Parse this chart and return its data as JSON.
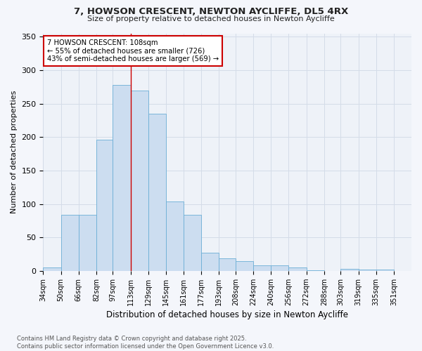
{
  "title_line1": "7, HOWSON CRESCENT, NEWTON AYCLIFFE, DL5 4RX",
  "title_line2": "Size of property relative to detached houses in Newton Aycliffe",
  "xlabel": "Distribution of detached houses by size in Newton Aycliffe",
  "ylabel": "Number of detached properties",
  "bar_color": "#ccddf0",
  "bar_edge_color": "#6baed6",
  "grid_color": "#d4dce8",
  "background_color": "#eef2f8",
  "fig_background": "#f4f6fb",
  "annotation_text": "7 HOWSON CRESCENT: 108sqm\n← 55% of detached houses are smaller (726)\n43% of semi-detached houses are larger (569) →",
  "property_line_x": 113,
  "categories": [
    "34sqm",
    "50sqm",
    "66sqm",
    "82sqm",
    "97sqm",
    "113sqm",
    "129sqm",
    "145sqm",
    "161sqm",
    "177sqm",
    "193sqm",
    "208sqm",
    "224sqm",
    "240sqm",
    "256sqm",
    "272sqm",
    "288sqm",
    "303sqm",
    "319sqm",
    "335sqm",
    "351sqm"
  ],
  "bin_edges": [
    34,
    50,
    66,
    82,
    97,
    113,
    129,
    145,
    161,
    177,
    193,
    208,
    224,
    240,
    256,
    272,
    288,
    303,
    319,
    335,
    351,
    367
  ],
  "values": [
    5,
    84,
    84,
    196,
    278,
    270,
    235,
    104,
    84,
    27,
    19,
    14,
    8,
    8,
    5,
    1,
    0,
    3,
    2,
    2,
    0
  ],
  "ylim": [
    0,
    355
  ],
  "yticks": [
    0,
    50,
    100,
    150,
    200,
    250,
    300,
    350
  ],
  "footnote": "Contains HM Land Registry data © Crown copyright and database right 2025.\nContains public sector information licensed under the Open Government Licence v3.0."
}
